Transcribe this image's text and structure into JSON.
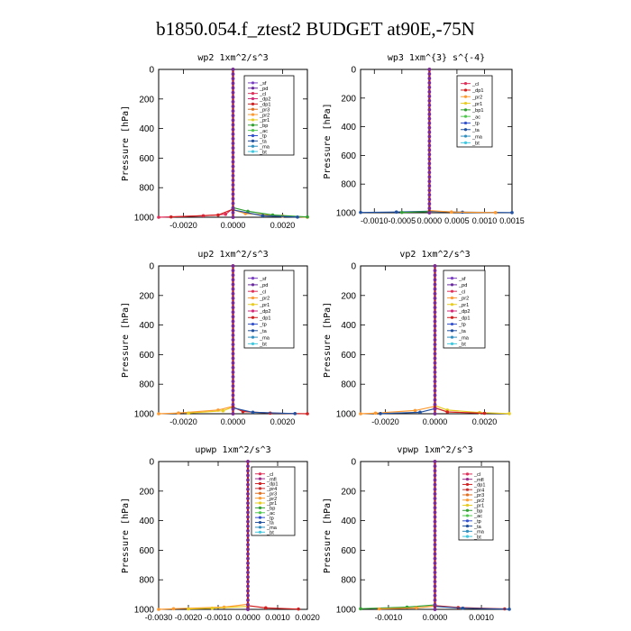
{
  "title": "b1850.054.f_ztest2  BUDGET at90E,-75N",
  "colors": {
    "sf": "#7a3fc4",
    "pd": "#6a2aa0",
    "cl": "#e0305a",
    "mfl": "#9a2b8a",
    "dp2": "#d42a78",
    "dp1": "#d21f1f",
    "pr4": "#c83232",
    "pr3": "#e07020",
    "pr2": "#ff9a30",
    "pr1": "#e8cc20",
    "bp": "#30a030",
    "bp1": "#30a030",
    "ac": "#50c850",
    "tp": "#3050d0",
    "ta": "#2050a0",
    "ma": "#3090c0",
    "bt": "#40c8e0"
  },
  "chart_data": [
    {
      "type": "line",
      "title": "wp2  1xm^2/s^3",
      "ylabel": "Pressure [hPa]",
      "ylim": [
        1000,
        0
      ],
      "xlim": [
        -0.003,
        0.003
      ],
      "xticks": [
        -0.002,
        0.0,
        0.002
      ],
      "xtick_labels": [
        "-0.0020",
        "0.0000",
        "0.0020"
      ],
      "yticks": [
        0,
        200,
        400,
        600,
        800,
        1000
      ],
      "legend": [
        "_sf",
        "_pd",
        "_cl",
        "_dp2",
        "_dp1",
        "_pr3",
        "_pr2",
        "_pr1",
        "_bp",
        "_ac",
        "_tp",
        "_ta",
        "_ma",
        "_bt"
      ],
      "series": [
        {
          "name": "_cl",
          "points": [
            [
              0,
              0
            ],
            [
              0,
              940
            ],
            [
              -0.0003,
              980
            ],
            [
              -0.0012,
              990
            ],
            [
              -0.003,
              1000
            ]
          ]
        },
        {
          "name": "_pr2",
          "points": [
            [
              0,
              0
            ],
            [
              0,
              950
            ],
            [
              0.0005,
              975
            ],
            [
              0.002,
              992
            ],
            [
              0.003,
              1000
            ]
          ]
        },
        {
          "name": "_bp",
          "points": [
            [
              0,
              0
            ],
            [
              0,
              935
            ],
            [
              0.0006,
              960
            ],
            [
              0.0016,
              985
            ],
            [
              0.003,
              998
            ]
          ]
        },
        {
          "name": "_dp1",
          "points": [
            [
              0,
              0
            ],
            [
              0,
              945
            ],
            [
              -0.0006,
              985
            ],
            [
              -0.0025,
              998
            ]
          ]
        },
        {
          "name": "_ta",
          "points": [
            [
              0,
              0
            ],
            [
              0,
              950
            ],
            [
              0.0012,
              990
            ],
            [
              0.0026,
              999
            ]
          ]
        },
        {
          "name": "_sf",
          "points": [
            [
              0,
              0
            ],
            [
              0,
              1000
            ]
          ]
        },
        {
          "name": "_pd",
          "points": [
            [
              0,
              0
            ],
            [
              0,
              1000
            ]
          ]
        }
      ]
    },
    {
      "type": "line",
      "title": "wp3  1xm^{3} s^{-4}",
      "ylabel": "Pressure [hPa]",
      "ylim": [
        1000,
        0
      ],
      "xlim": [
        -0.00125,
        0.0015
      ],
      "xticks": [
        -0.001,
        -0.0005,
        0.0,
        0.0005,
        0.001,
        0.0015
      ],
      "xtick_labels": [
        "-0.0010",
        "-0.0005",
        "0.0000",
        "0.0005",
        "0.0010",
        "0.0015"
      ],
      "yticks": [
        0,
        200,
        400,
        600,
        800,
        1000
      ],
      "legend": [
        "_cl",
        "_dp1",
        "_pr2",
        "_pr1",
        "_bp1",
        "_ac",
        "_tp",
        "_ta",
        "_ma",
        "_bt"
      ],
      "series": [
        {
          "name": "_dp1",
          "points": [
            [
              0,
              0
            ],
            [
              0,
              990
            ],
            [
              0,
              1000
            ]
          ]
        },
        {
          "name": "_ta",
          "points": [
            [
              -0.00125,
              998
            ],
            [
              -0.0006,
              995
            ],
            [
              0,
              990
            ],
            [
              0.0006,
              996
            ],
            [
              0.0015,
              999
            ]
          ]
        },
        {
          "name": "_pr2",
          "points": [
            [
              0,
              0
            ],
            [
              0,
              985
            ],
            [
              0.0004,
              995
            ],
            [
              0.0012,
              999
            ]
          ]
        },
        {
          "name": "_bp1",
          "points": [
            [
              0,
              0
            ],
            [
              0,
              992
            ],
            [
              -0.0005,
              998
            ]
          ]
        },
        {
          "name": "_cl",
          "points": [
            [
              0,
              0
            ],
            [
              0,
              1000
            ]
          ]
        }
      ]
    },
    {
      "type": "line",
      "title": "up2  1xm^2/s^3",
      "ylabel": "Pressure [hPa]",
      "ylim": [
        1000,
        0
      ],
      "xlim": [
        -0.003,
        0.003
      ],
      "xticks": [
        -0.002,
        0.0,
        0.002
      ],
      "xtick_labels": [
        "-0.0020",
        "0.0000",
        "0.0020"
      ],
      "yticks": [
        0,
        200,
        400,
        600,
        800,
        1000
      ],
      "legend": [
        "_sf",
        "_pd",
        "_cl",
        "_pr2",
        "_pr1",
        "_dp2",
        "_dp1",
        "_tp",
        "_ta",
        "_ma",
        "_bt"
      ],
      "series": [
        {
          "name": "_pr2",
          "points": [
            [
              0,
              0
            ],
            [
              0,
              950
            ],
            [
              -0.0006,
              975
            ],
            [
              -0.0022,
              995
            ],
            [
              -0.003,
              1000
            ]
          ]
        },
        {
          "name": "_pr1",
          "points": [
            [
              0,
              0
            ],
            [
              0,
              955
            ],
            [
              -0.0004,
              980
            ],
            [
              -0.0018,
              996
            ]
          ]
        },
        {
          "name": "_dp1",
          "points": [
            [
              0,
              0
            ],
            [
              0,
              955
            ],
            [
              0.0004,
              985
            ],
            [
              0.0015,
              996
            ],
            [
              0.003,
              1000
            ]
          ]
        },
        {
          "name": "_ta",
          "points": [
            [
              0,
              0
            ],
            [
              0,
              960
            ],
            [
              0.0008,
              990
            ],
            [
              0.0025,
              999
            ]
          ]
        },
        {
          "name": "_dp2",
          "points": [
            [
              0,
              0
            ],
            [
              0,
              1000
            ]
          ]
        },
        {
          "name": "_cl",
          "points": [
            [
              0,
              0
            ],
            [
              0,
              1000
            ]
          ]
        }
      ]
    },
    {
      "type": "line",
      "title": "vp2  1xm^2/s^3",
      "ylabel": "Pressure [hPa]",
      "ylim": [
        1000,
        0
      ],
      "xlim": [
        -0.003,
        0.003
      ],
      "xticks": [
        -0.002,
        0.0,
        0.002
      ],
      "xtick_labels": [
        "-0.0020",
        "0.0000",
        "0.0020"
      ],
      "yticks": [
        0,
        200,
        400,
        600,
        800,
        1000
      ],
      "legend": [
        "_sf",
        "_pd",
        "_cl",
        "_pr2",
        "_pr1",
        "_dp2",
        "_dp1",
        "_tp",
        "_ta",
        "_ma",
        "_bt"
      ],
      "series": [
        {
          "name": "_pr2",
          "points": [
            [
              0,
              0
            ],
            [
              0,
              950
            ],
            [
              -0.0008,
              978
            ],
            [
              -0.0024,
              996
            ],
            [
              -0.003,
              1000
            ]
          ]
        },
        {
          "name": "_pr1",
          "points": [
            [
              0,
              0
            ],
            [
              0,
              945
            ],
            [
              0.0005,
              975
            ],
            [
              0.0018,
              992
            ],
            [
              0.003,
              999
            ]
          ]
        },
        {
          "name": "_dp1",
          "points": [
            [
              0,
              0
            ],
            [
              0,
              960
            ],
            [
              0.0005,
              988
            ],
            [
              0.002,
              997
            ]
          ]
        },
        {
          "name": "_ta",
          "points": [
            [
              0,
              0
            ],
            [
              0,
              965
            ],
            [
              -0.0006,
              990
            ],
            [
              -0.0022,
              999
            ]
          ]
        },
        {
          "name": "_cl",
          "points": [
            [
              0,
              0
            ],
            [
              0,
              1000
            ]
          ]
        }
      ]
    },
    {
      "type": "line",
      "title": "upwp  1xm^2/s^3",
      "ylabel": "Pressure [hPa]",
      "ylim": [
        1000,
        0
      ],
      "xlim": [
        -0.003,
        0.002
      ],
      "xticks": [
        -0.003,
        -0.002,
        -0.001,
        0.0,
        0.001,
        0.002
      ],
      "xtick_labels": [
        "-0.0030",
        "-0.0020",
        "-0.0010",
        "0.0000",
        "0.0010",
        "0.0020"
      ],
      "yticks": [
        0,
        200,
        400,
        600,
        800,
        1000
      ],
      "legend": [
        "_cl",
        "_mfl",
        "_dp1",
        "_pr4",
        "_pr3",
        "_pr2",
        "_pr1",
        "_bp",
        "_ac",
        "_tp",
        "_ta",
        "_ma",
        "_bt"
      ],
      "series": [
        {
          "name": "_pr2",
          "points": [
            [
              0,
              0
            ],
            [
              0,
              965
            ],
            [
              -0.0008,
              985
            ],
            [
              -0.0025,
              996
            ],
            [
              -0.003,
              1000
            ]
          ]
        },
        {
          "name": "_dp1",
          "points": [
            [
              0,
              0
            ],
            [
              0,
              975
            ],
            [
              0.0006,
              990
            ],
            [
              0.0017,
              998
            ]
          ]
        },
        {
          "name": "_pr1",
          "points": [
            [
              0,
              0
            ],
            [
              0,
              980
            ],
            [
              -0.0012,
              992
            ],
            [
              -0.002,
              997
            ]
          ]
        },
        {
          "name": "_mfl",
          "points": [
            [
              0,
              0
            ],
            [
              0,
              990
            ],
            [
              0,
              1000
            ]
          ]
        },
        {
          "name": "_cl",
          "points": [
            [
              0,
              0
            ],
            [
              0,
              1000
            ]
          ]
        }
      ]
    },
    {
      "type": "line",
      "title": "vpwp  1xm^2/s^3",
      "ylabel": "Pressure [hPa]",
      "ylim": [
        1000,
        0
      ],
      "xlim": [
        -0.0016,
        0.0016
      ],
      "xticks": [
        -0.001,
        0.0,
        0.001
      ],
      "xtick_labels": [
        "-0.0010",
        "0.0000",
        "0.0010"
      ],
      "yticks": [
        0,
        200,
        400,
        600,
        800,
        1000
      ],
      "legend": [
        "_cl",
        "_mfl",
        "_dp1",
        "_pr4",
        "_pr3",
        "_pr2",
        "_pr1",
        "_bp",
        "_ac",
        "_tp",
        "_ta",
        "_ma",
        "_bt"
      ],
      "series": [
        {
          "name": "_bp",
          "points": [
            [
              0,
              0
            ],
            [
              0,
              970
            ],
            [
              -0.0006,
              985
            ],
            [
              -0.0016,
              996
            ]
          ]
        },
        {
          "name": "_dp1",
          "points": [
            [
              0,
              0
            ],
            [
              0,
              975
            ],
            [
              0.0005,
              988
            ],
            [
              0.0015,
              997
            ]
          ]
        },
        {
          "name": "_pr2",
          "points": [
            [
              0,
              0
            ],
            [
              0,
              978
            ],
            [
              -0.0004,
              990
            ],
            [
              -0.0012,
              997
            ]
          ]
        },
        {
          "name": "_ta",
          "points": [
            [
              0,
              0
            ],
            [
              0,
              980
            ],
            [
              0.0006,
              992
            ],
            [
              0.0016,
              999
            ]
          ]
        },
        {
          "name": "_mfl",
          "points": [
            [
              0,
              0
            ],
            [
              0,
              1000
            ]
          ]
        }
      ]
    }
  ]
}
